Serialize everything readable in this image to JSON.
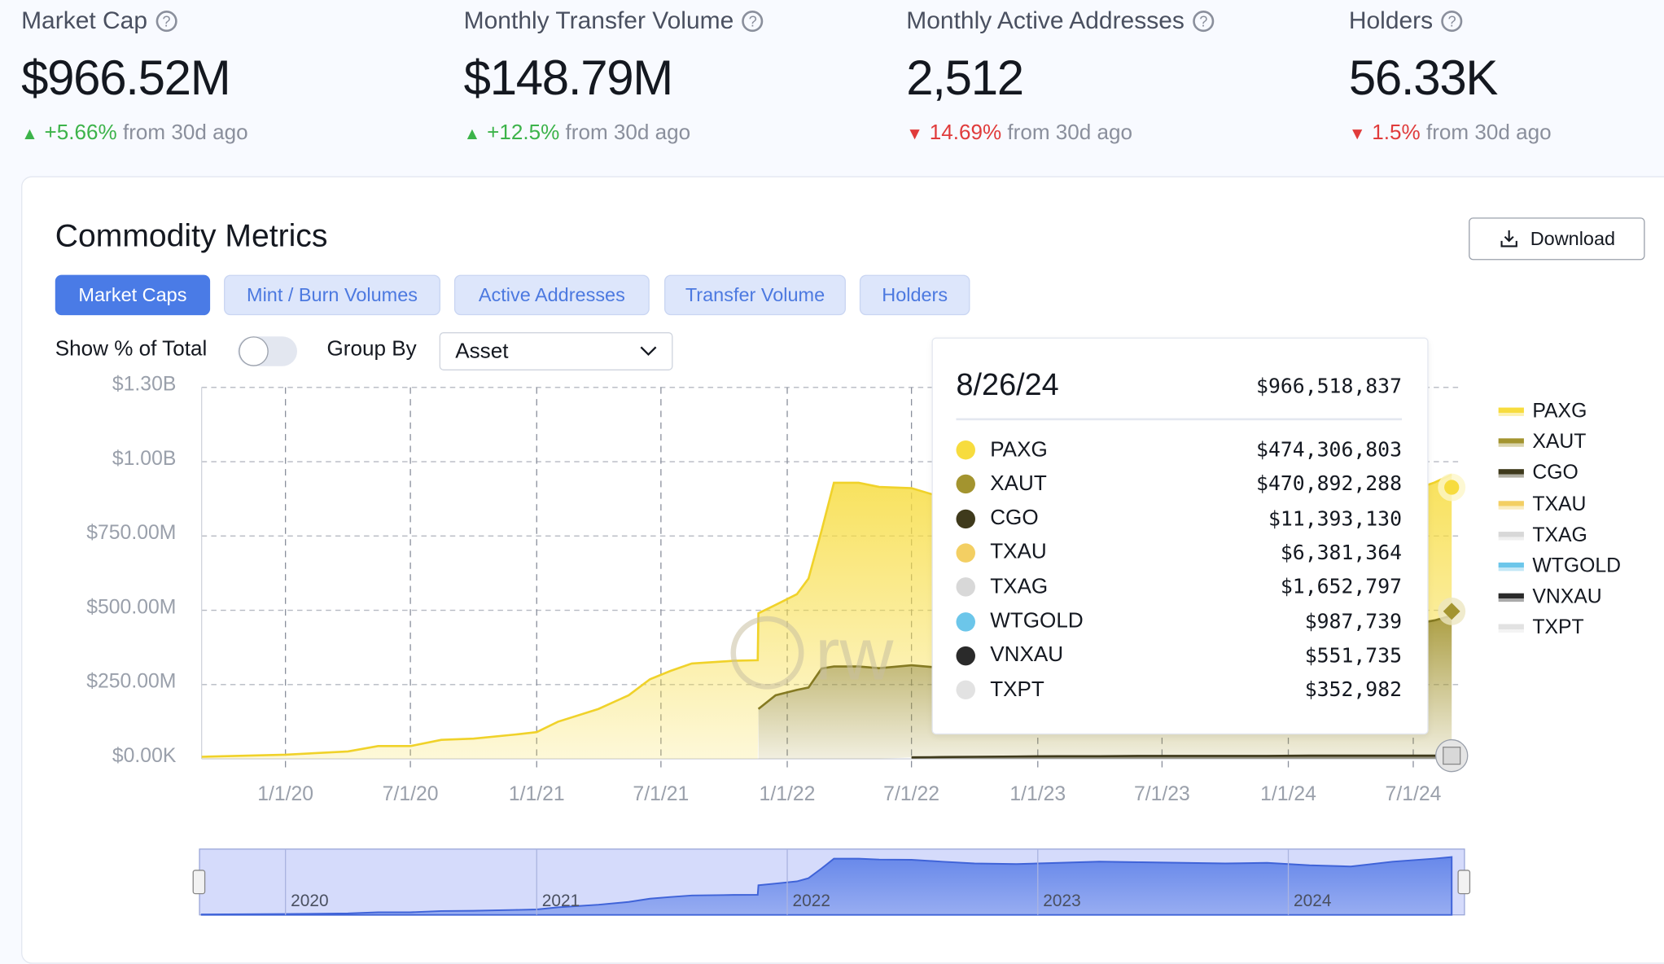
{
  "kpis": [
    {
      "label": "Market Cap",
      "value": "$966.52M",
      "delta": "+5.66%",
      "direction": "up",
      "suffix": "from 30d ago"
    },
    {
      "label": "Monthly Transfer Volume",
      "value": "$148.79M",
      "delta": "+12.5%",
      "direction": "up",
      "suffix": "from 30d ago"
    },
    {
      "label": "Monthly Active Addresses",
      "value": "2,512",
      "delta": "14.69%",
      "direction": "down",
      "suffix": "from 30d ago"
    },
    {
      "label": "Holders",
      "value": "56.33K",
      "delta": "1.5%",
      "direction": "down",
      "suffix": "from 30d ago"
    }
  ],
  "help_icon": "?",
  "section": {
    "title": "Commodity Metrics",
    "download_label": "Download",
    "tabs": [
      {
        "label": "Market Caps",
        "active": true
      },
      {
        "label": "Mint / Burn Volumes",
        "active": false
      },
      {
        "label": "Active Addresses",
        "active": false
      },
      {
        "label": "Transfer Volume",
        "active": false
      },
      {
        "label": "Holders",
        "active": false
      }
    ],
    "show_pct_label": "Show % of Total",
    "show_pct_on": false,
    "group_by_label": "Group By",
    "group_by_value": "Asset"
  },
  "tooltip": {
    "date": "8/26/24",
    "total": "$966,518,837",
    "rows": [
      {
        "name": "PAXG",
        "value": "$474,306,803",
        "color": "#f7dc3e"
      },
      {
        "name": "XAUT",
        "value": "$470,892,288",
        "color": "#a3942f"
      },
      {
        "name": "CGO",
        "value": "$11,393,130",
        "color": "#3f3a1c"
      },
      {
        "name": "TXAU",
        "value": "$6,381,364",
        "color": "#f3cf63"
      },
      {
        "name": "TXAG",
        "value": "$1,652,797",
        "color": "#d8d8d8"
      },
      {
        "name": "WTGOLD",
        "value": "$987,739",
        "color": "#6cc6ea"
      },
      {
        "name": "VNXAU",
        "value": "$551,735",
        "color": "#2a2a2a"
      },
      {
        "name": "TXPT",
        "value": "$352,982",
        "color": "#e2e2e2"
      }
    ]
  },
  "chart_data": {
    "type": "area",
    "stacked": true,
    "y_tick_labels": [
      "$0.00K",
      "$250.00M",
      "$500.00M",
      "$750.00M",
      "$1.00B",
      "$1.30B"
    ],
    "x_tick_labels": [
      "1/1/20",
      "7/1/20",
      "1/1/21",
      "7/1/21",
      "1/1/22",
      "7/1/22",
      "1/1/23",
      "7/1/23",
      "1/1/24",
      "7/1/24"
    ],
    "navigator_labels": [
      "2020",
      "2021",
      "2022",
      "2023",
      "2024"
    ],
    "grid": true,
    "legend_position": "right",
    "x": [
      "2019-09-01",
      "2020-01-01",
      "2020-04-01",
      "2020-05-15",
      "2020-07-01",
      "2020-08-15",
      "2020-10-01",
      "2020-12-01",
      "2021-01-01",
      "2021-02-01",
      "2021-04-01",
      "2021-05-15",
      "2021-06-15",
      "2021-07-15",
      "2021-08-15",
      "2021-10-15",
      "2021-11-19",
      "2021-11-20",
      "2021-12-15",
      "2022-01-15",
      "2022-02-01",
      "2022-02-20",
      "2022-03-10",
      "2022-04-15",
      "2022-05-15",
      "2022-07-01",
      "2022-08-15",
      "2022-10-01",
      "2022-12-01",
      "2023-02-01",
      "2023-04-01",
      "2023-06-01",
      "2023-08-01",
      "2023-10-01",
      "2023-12-01",
      "2024-02-01",
      "2024-04-01",
      "2024-06-01",
      "2024-08-01",
      "2024-08-26"
    ],
    "series": [
      {
        "name": "PAXG",
        "color": "#f7dc3e",
        "values_millions_usd": [
          7,
          14,
          25,
          43,
          43,
          64,
          68,
          82,
          90,
          125,
          168,
          214,
          268,
          296,
          321,
          330,
          332,
          322,
          304,
          322,
          367,
          464,
          618,
          618,
          610,
          596,
          574,
          553,
          542,
          551,
          561,
          540,
          520,
          500,
          490,
          429,
          389,
          439,
          464,
          474.3
        ]
      },
      {
        "name": "XAUT",
        "color": "#a3942f",
        "values_millions_usd": [
          0,
          0,
          0,
          0,
          0,
          0,
          0,
          0,
          0,
          0,
          0,
          0,
          0,
          0,
          0,
          0,
          0,
          168,
          214,
          232,
          240,
          304,
          311,
          311,
          305,
          310,
          300,
          290,
          290,
          300,
          310,
          320,
          330,
          340,
          360,
          380,
          400,
          430,
          455,
          470.9
        ]
      },
      {
        "name": "CGO",
        "color": "#3f3a1c",
        "values_millions_usd": [
          0,
          0,
          0,
          0,
          0,
          0,
          0,
          0,
          0,
          0,
          0,
          0,
          0,
          0,
          0,
          0,
          0,
          0,
          0,
          0,
          0,
          0,
          0,
          0,
          0,
          5,
          6,
          7,
          8,
          9,
          9,
          10,
          10,
          10,
          10,
          11,
          11,
          11,
          11,
          11.4
        ]
      },
      {
        "name": "TXAU",
        "color": "#f3cf63"
      },
      {
        "name": "TXAG",
        "color": "#d8d8d8"
      },
      {
        "name": "WTGOLD",
        "color": "#6cc6ea"
      },
      {
        "name": "VNXAU",
        "color": "#2a2a2a"
      },
      {
        "name": "TXPT",
        "color": "#e2e2e2"
      }
    ]
  },
  "colors": {
    "accent": "#4a7be6",
    "up": "#3cb34a",
    "down": "#e03b3b",
    "navigator": "#5b7fe8"
  }
}
